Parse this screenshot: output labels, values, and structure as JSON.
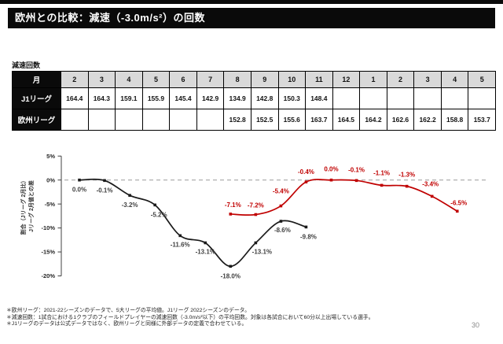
{
  "title": "欧州との比較：減速（-3.0m/s²）の回数",
  "table": {
    "caption": "減速回数",
    "corner_label": "月",
    "months": [
      "2",
      "3",
      "4",
      "5",
      "6",
      "7",
      "8",
      "9",
      "10",
      "11",
      "12",
      "1",
      "2",
      "3",
      "4",
      "5"
    ],
    "rows": [
      {
        "label": "J1リーグ",
        "values": [
          "164.4",
          "164.3",
          "159.1",
          "155.9",
          "145.4",
          "142.9",
          "134.9",
          "142.8",
          "150.3",
          "148.4",
          "",
          "",
          "",
          "",
          "",
          ""
        ]
      },
      {
        "label": "欧州リーグ",
        "values": [
          "",
          "",
          "",
          "",
          "",
          "",
          "152.8",
          "152.5",
          "155.6",
          "163.7",
          "164.5",
          "164.2",
          "162.6",
          "162.2",
          "158.8",
          "153.7"
        ]
      }
    ]
  },
  "chart_data": {
    "type": "line",
    "categories": [
      "2",
      "3",
      "4",
      "5",
      "6",
      "7",
      "8",
      "9",
      "10",
      "11",
      "12",
      "1",
      "2",
      "3",
      "4",
      "5"
    ],
    "ylim": [
      -20,
      5
    ],
    "yticks": [
      5,
      0,
      -5,
      -10,
      -15,
      -20
    ],
    "ytick_labels": [
      "5%",
      "0%",
      "-5%",
      "-10%",
      "-15%",
      "-20%"
    ],
    "ylabel_line1": "割合（Jリーグ 2月比）",
    "ylabel_line2": "Jリーグ 2月値との差",
    "zero_line": "dashed",
    "grid": false,
    "legend": "none",
    "series": [
      {
        "name": "J1リーグ",
        "color": "#1a1a1a",
        "label_color": "#404040",
        "start_index": 0,
        "values": [
          0.0,
          -0.1,
          -3.2,
          -5.2,
          -11.6,
          -13.1,
          -18.0,
          -13.1,
          -8.6,
          -9.8
        ],
        "labels": [
          "0.0%",
          "-0.1%",
          "-3.2%",
          "-5.2%",
          "-11.6%",
          "-13.1%",
          "-18.0%",
          "-13.1%",
          "-8.6%",
          "-9.8%"
        ],
        "label_position": "below"
      },
      {
        "name": "欧州リーグ",
        "color": "#c00000",
        "label_color": "#c00000",
        "start_index": 6,
        "values": [
          -7.1,
          -7.2,
          -5.4,
          -0.4,
          0.0,
          -0.1,
          -1.1,
          -1.3,
          -3.4,
          -6.5
        ],
        "labels": [
          "-7.1%",
          "-7.2%",
          "-5.4%",
          "-0.4%",
          "0.0%",
          "-0.1%",
          "-1.1%",
          "-1.3%",
          "-3.4%",
          "-6.5%"
        ],
        "label_position": "above"
      }
    ]
  },
  "footnotes": [
    "＊欧州リーグ：2021-22シーズンのデータで、5大リーグの平均値。J1リーグ 2022シーズンのデータ。",
    "＊減速回数：1試合における1クラブのフィールドプレイヤーの減速回数（-3.0m/s²以下）の平均回数。対象は各試合において60分以上出場している選手。",
    "＊J1リーグのデータは公式データではなく、欧州リーグと同様に外部データの定義で合わせている。"
  ],
  "page_number": "30"
}
